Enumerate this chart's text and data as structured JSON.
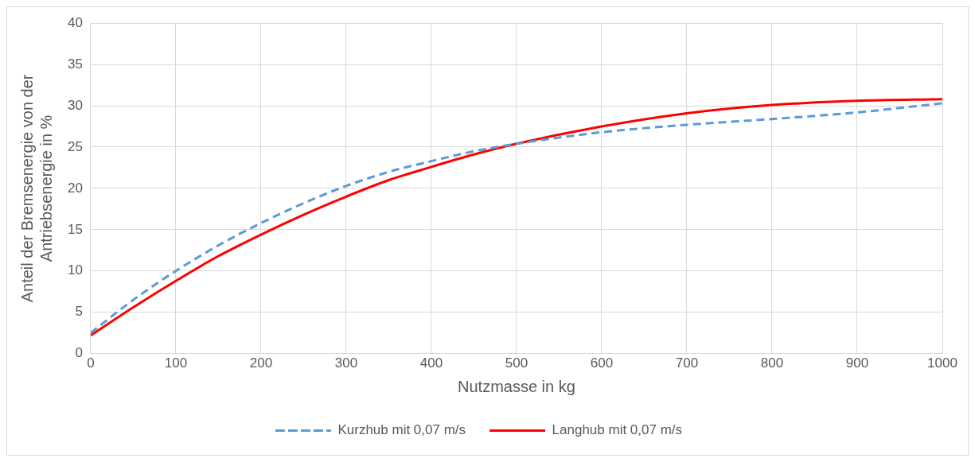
{
  "chart_data": {
    "type": "line",
    "xlabel": "Nutzmasse in kg",
    "ylabel": "Anteil der Bremsenergie von der Antriebsenergie in %",
    "x": [
      0,
      50,
      100,
      150,
      200,
      250,
      300,
      350,
      400,
      450,
      500,
      600,
      700,
      800,
      900,
      1000
    ],
    "series": [
      {
        "name": "Kurzhub mit 0,07 m/s",
        "color": "#5b9bd5",
        "line_style": "dashed",
        "values": [
          2.5,
          6.5,
          10,
          13.1,
          15.8,
          18.2,
          20.3,
          22.0,
          23.3,
          24.5,
          25.4,
          26.8,
          27.7,
          28.4,
          29.2,
          30.3
        ]
      },
      {
        "name": "Langhub mit 0,07 m/s",
        "color": "#ff0000",
        "line_style": "solid",
        "values": [
          2.2,
          5.6,
          8.8,
          11.8,
          14.4,
          16.8,
          19.0,
          21.0,
          22.6,
          24.1,
          25.4,
          27.5,
          29.1,
          30.1,
          30.6,
          30.8
        ]
      }
    ],
    "xlim": [
      0,
      1000
    ],
    "xticks": [
      0,
      100,
      200,
      300,
      400,
      500,
      600,
      700,
      800,
      900,
      1000
    ],
    "ylim": [
      0,
      40
    ],
    "yticks": [
      0,
      5,
      10,
      15,
      20,
      25,
      30,
      35,
      40
    ],
    "grid": true,
    "legend": "bottom",
    "marker": "none"
  }
}
